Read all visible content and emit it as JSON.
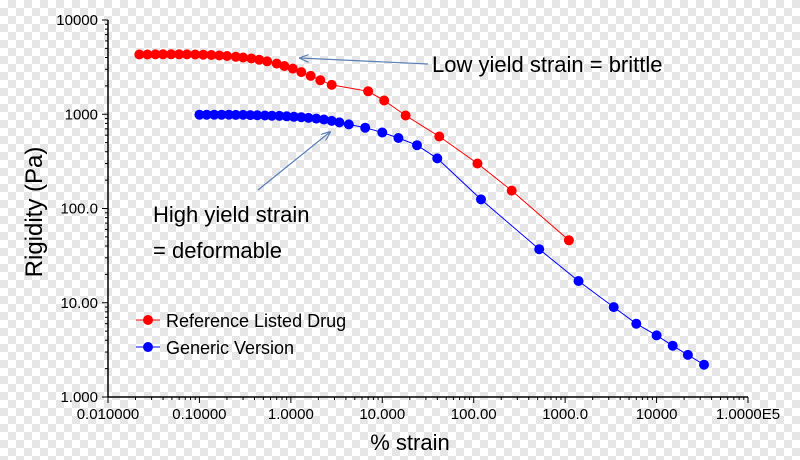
{
  "chart_data": {
    "type": "scatter",
    "title": "",
    "xlabel": "% strain",
    "ylabel": "Rigidity (Pa)",
    "xscale": "log",
    "yscale": "log",
    "xlim": [
      0.01,
      100000
    ],
    "ylim": [
      1,
      10000
    ],
    "x_ticks": [
      0.01,
      0.1,
      1,
      10,
      100,
      1000,
      10000,
      100000
    ],
    "x_tick_labels": [
      "0.010000",
      "0.10000",
      "1.0000",
      "10.000",
      "100.00",
      "1000.0",
      "10000",
      "1.0000E5"
    ],
    "y_ticks": [
      1,
      10,
      100,
      1000,
      10000
    ],
    "y_tick_labels": [
      "1.000",
      "10.00",
      "100.0",
      "1000",
      "10000"
    ],
    "grid": false,
    "legend_position": "bottom-left",
    "colors": {
      "reference": "#ff0000",
      "generic": "#0000ff",
      "arrow": "#5b7fb5"
    },
    "series": [
      {
        "name": "Reference Listed Drug",
        "color": "#ff0000",
        "x": [
          0.022,
          0.027,
          0.033,
          0.04,
          0.049,
          0.06,
          0.073,
          0.09,
          0.11,
          0.135,
          0.165,
          0.2,
          0.25,
          0.3,
          0.37,
          0.45,
          0.55,
          0.7,
          0.85,
          1.05,
          1.3,
          1.65,
          2.1,
          2.8,
          7,
          10.5,
          18,
          42,
          110,
          260,
          1100
        ],
        "y": [
          4300,
          4300,
          4320,
          4330,
          4330,
          4330,
          4320,
          4300,
          4280,
          4250,
          4200,
          4150,
          4070,
          4000,
          3900,
          3780,
          3650,
          3450,
          3250,
          3050,
          2800,
          2550,
          2300,
          2050,
          1750,
          1400,
          970,
          580,
          300,
          155,
          46
        ]
      },
      {
        "name": "Generic Version",
        "color": "#0000ff",
        "x": [
          0.1,
          0.12,
          0.145,
          0.175,
          0.21,
          0.25,
          0.3,
          0.36,
          0.43,
          0.52,
          0.62,
          0.75,
          0.9,
          1.08,
          1.3,
          1.56,
          1.9,
          2.3,
          2.8,
          3.4,
          4.3,
          6.5,
          10,
          15,
          24,
          40,
          120,
          520,
          1400,
          3400,
          6000,
          10000,
          15000,
          22000,
          33000
        ],
        "y": [
          990,
          990,
          990,
          990,
          990,
          985,
          985,
          980,
          975,
          970,
          965,
          960,
          950,
          940,
          930,
          915,
          900,
          880,
          850,
          820,
          780,
          720,
          640,
          560,
          470,
          340,
          125,
          37,
          17,
          9,
          6,
          4.5,
          3.5,
          2.8,
          2.2
        ]
      }
    ],
    "annotations": [
      {
        "text": "Low yield strain = brittle",
        "target_series": "Reference Listed Drug"
      },
      {
        "text_lines": [
          "High yield strain",
          "= deformable"
        ],
        "target_series": "Generic Version"
      }
    ]
  }
}
